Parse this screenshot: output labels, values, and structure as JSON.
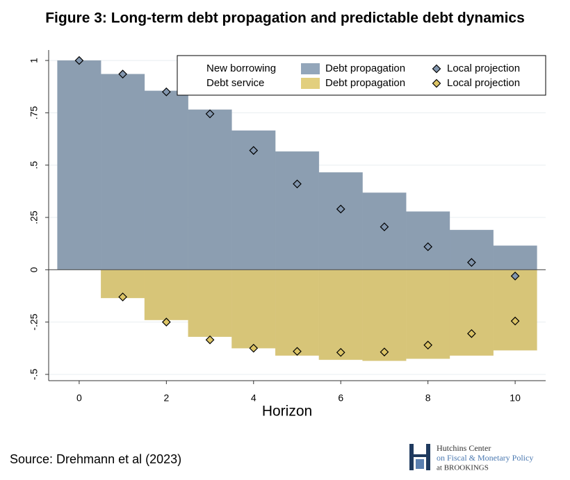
{
  "chart_data": {
    "type": "bar",
    "title": "Figure 3: Long-term debt propagation and predictable debt dynamics",
    "x_label": "Horizon",
    "source": "Source: Drehmann et al (2023)",
    "logo": [
      "Hutchins Center",
      "on Fiscal & Monetary Policy",
      "at BROOKINGS"
    ],
    "x": [
      0,
      1,
      2,
      3,
      4,
      5,
      6,
      7,
      8,
      9,
      10
    ],
    "xlim": [
      -0.7,
      10.7
    ],
    "xticks": [
      0,
      2,
      4,
      6,
      8,
      10
    ],
    "ylim": [
      -0.53,
      1.05
    ],
    "yticks": [
      {
        "value": -0.5,
        "label": "-.5"
      },
      {
        "value": -0.25,
        "label": "-.25"
      },
      0,
      {
        "value": 0.25,
        "label": ".25"
      },
      {
        "value": 0.5,
        "label": ".5"
      },
      {
        "value": 0.75,
        "label": ".75"
      },
      1
    ],
    "grid": true,
    "legend_groups": [
      "New borrowing",
      "Debt service"
    ],
    "series": [
      {
        "name": "Debt propagation",
        "group": 0,
        "mark": "bar",
        "color": "#93a6ba",
        "values": [
          1.0,
          0.935,
          0.855,
          0.765,
          0.665,
          0.565,
          0.465,
          0.368,
          0.278,
          0.19,
          0.115
        ]
      },
      {
        "name": "Local projection",
        "group": 0,
        "mark": "diamond",
        "color": "#8296ae",
        "values": [
          1.0,
          0.935,
          0.85,
          0.745,
          0.57,
          0.41,
          0.29,
          0.205,
          0.11,
          0.035,
          -0.03
        ]
      },
      {
        "name": "Debt propagation",
        "group": 1,
        "mark": "bar",
        "color": "#e2cf7e",
        "values": [
          0,
          -0.135,
          -0.24,
          -0.32,
          -0.375,
          -0.41,
          -0.43,
          -0.435,
          -0.425,
          -0.41,
          -0.385
        ]
      },
      {
        "name": "Local projection",
        "group": 1,
        "mark": "diamond",
        "color": "#dcc465",
        "values": [
          null,
          -0.13,
          -0.25,
          -0.335,
          -0.375,
          -0.39,
          -0.395,
          -0.393,
          -0.36,
          -0.305,
          -0.245
        ]
      }
    ]
  }
}
